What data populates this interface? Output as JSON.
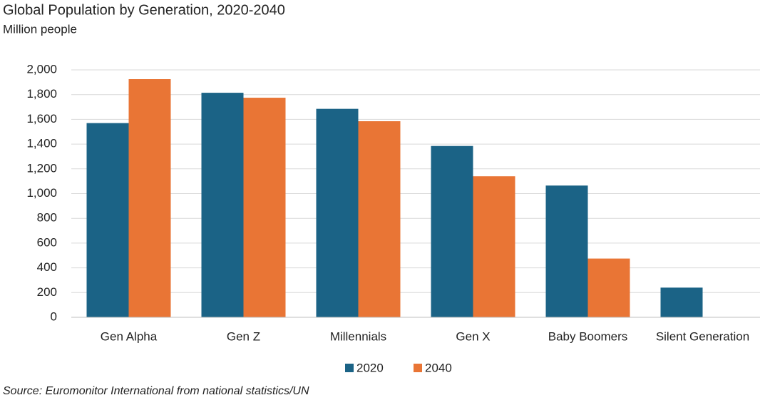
{
  "chart_data": {
    "type": "bar",
    "title": "Global Population by Generation, 2020-2040",
    "subtitle": "Million people",
    "source": "Source: Euromonitor International from national statistics/UN",
    "categories": [
      "Gen Alpha",
      "Gen Z",
      "Millennials",
      "Gen X",
      "Baby Boomers",
      "Silent Generation"
    ],
    "series": [
      {
        "name": "2020",
        "color": "#1b6386",
        "values": [
          1570,
          1815,
          1685,
          1385,
          1065,
          240
        ]
      },
      {
        "name": "2040",
        "color": "#e97535",
        "values": [
          1925,
          1775,
          1585,
          1140,
          475,
          null
        ]
      }
    ],
    "ylim": [
      0,
      2000
    ],
    "yticks": [
      0,
      200,
      400,
      600,
      800,
      {
        "value": 1000,
        "label": "1,000"
      },
      {
        "value": 1200,
        "label": "1,200"
      },
      {
        "value": 1400,
        "label": "1,400"
      },
      {
        "value": 1600,
        "label": "1,600"
      },
      {
        "value": 1800,
        "label": "1,800"
      },
      {
        "value": 2000,
        "label": "2,000"
      }
    ],
    "grid": true,
    "legend": "bottom"
  }
}
